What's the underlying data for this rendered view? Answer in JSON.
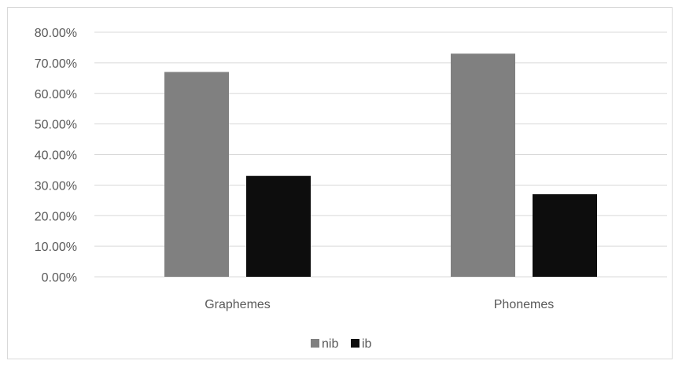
{
  "chart_data": {
    "type": "bar",
    "title": "",
    "xlabel": "",
    "ylabel": "",
    "categories": [
      "Graphemes",
      "Phonemes"
    ],
    "series": [
      {
        "name": "nib",
        "values": [
          0.67,
          0.73
        ],
        "color": "#808080"
      },
      {
        "name": "ib",
        "values": [
          0.33,
          0.27
        ],
        "color": "#0d0d0d"
      }
    ],
    "ylim": [
      0,
      0.8
    ],
    "yticks": [
      "0.00%",
      "10.00%",
      "20.00%",
      "30.00%",
      "40.00%",
      "50.00%",
      "60.00%",
      "70.00%",
      "80.00%"
    ],
    "grid": true,
    "gridline_color": "#d9d9d9",
    "legend_position": "bottom"
  }
}
